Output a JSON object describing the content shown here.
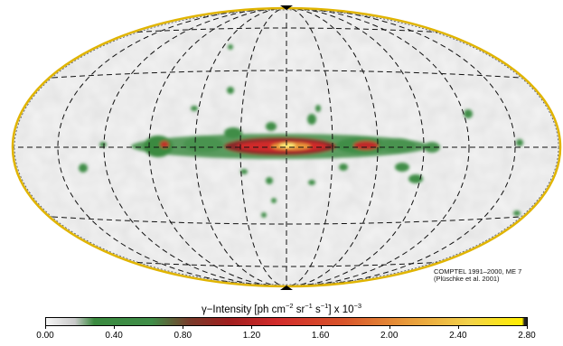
{
  "map": {
    "projection": "aitoff-hammer",
    "grid": "dashed",
    "colors": {
      "outline": "#e0b400",
      "background": "#f2f2f2",
      "low": "#ffffff",
      "mid": "#3a8a3f",
      "high": "#d22b2b",
      "max": "#ffee00"
    }
  },
  "credit": {
    "line1": "COMPTEL 1991–2000, ME 7",
    "line2": "(Plüschke et al. 2001)"
  },
  "colorbar": {
    "title_prefix": "γ−Intensity [ph cm",
    "exp1": "−2",
    "sr": " sr",
    "exp2": "−1",
    "s": " s",
    "exp3": "−1",
    "title_suffix": "]   x 10",
    "exp4": "−3",
    "ticks": [
      "0.00",
      "0.40",
      "0.80",
      "1.20",
      "1.60",
      "2.00",
      "2.40",
      "2.80"
    ],
    "min": 0,
    "max": 2.8
  }
}
